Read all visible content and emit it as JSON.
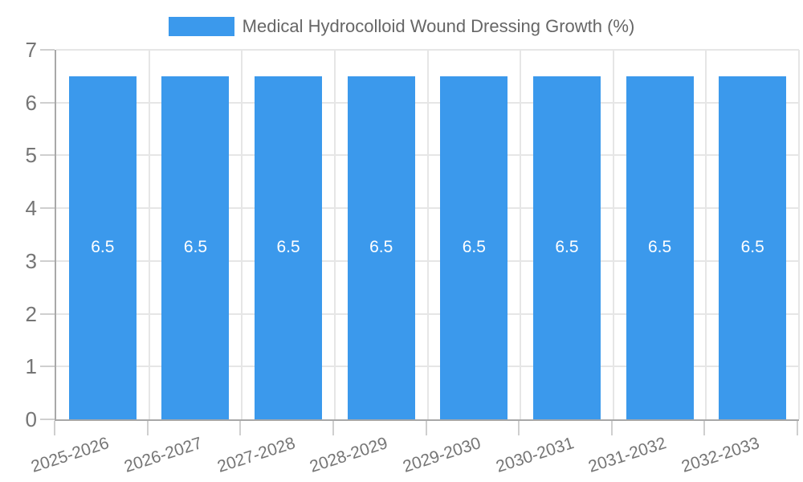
{
  "chart_data": {
    "type": "bar",
    "title": "Medical Hydrocolloid Wound Dressing Growth (%)",
    "legend": {
      "label": "Medical Hydrocolloid Wound Dressing Growth (%)",
      "position": "top-center"
    },
    "categories": [
      "2025-2026",
      "2026-2027",
      "2027-2028",
      "2028-2029",
      "2029-2030",
      "2030-2031",
      "2031-2032",
      "2032-2033"
    ],
    "series": [
      {
        "name": "Medical Hydrocolloid Wound Dressing Growth (%)",
        "values": [
          6.5,
          6.5,
          6.5,
          6.5,
          6.5,
          6.5,
          6.5,
          6.5
        ]
      }
    ],
    "value_labels": [
      "6.5",
      "6.5",
      "6.5",
      "6.5",
      "6.5",
      "6.5",
      "6.5",
      "6.5"
    ],
    "xlabel": "",
    "ylabel": "",
    "ylim": [
      0,
      7
    ],
    "yticks": [
      "0",
      "1",
      "2",
      "3",
      "4",
      "5",
      "6",
      "7"
    ],
    "grid": true,
    "x_label_rotation_deg": -18,
    "colors": {
      "bar": "#3B99EC",
      "value_label": "#FFFFFF",
      "axis_line": "#A8A8A8",
      "gridline": "#E6E6E6",
      "tick": "#CFCFCF",
      "tick_label": "#757575",
      "legend_text": "#666666"
    }
  }
}
